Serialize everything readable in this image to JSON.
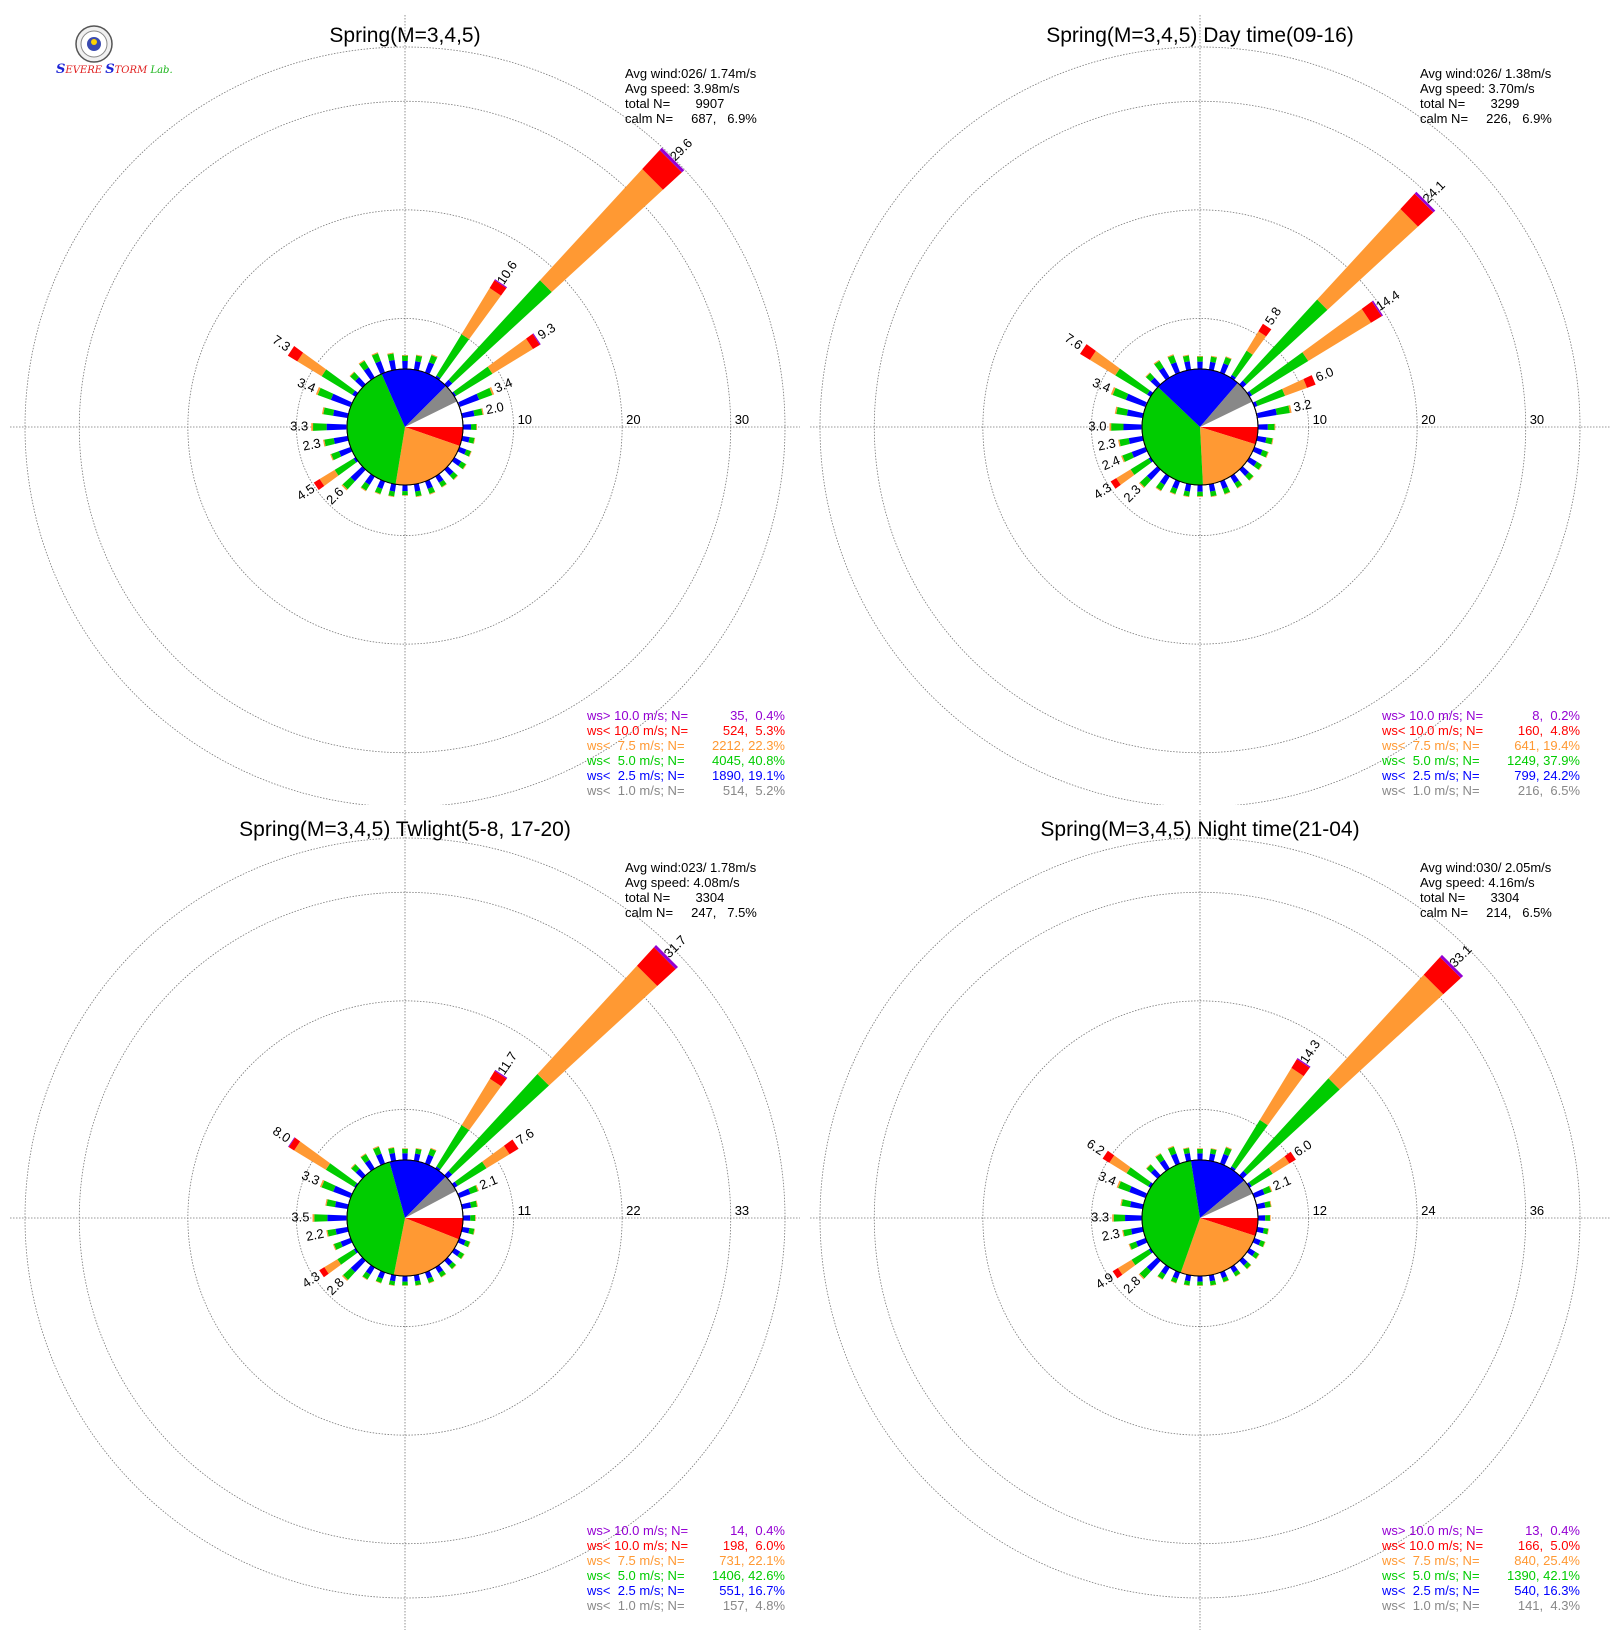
{
  "legend_labels": {
    "gt10": "ws> 10.0 m/s; N=",
    "lt10": "ws< 10.0 m/s; N=",
    "lt75": "ws<  7.5 m/s; N=",
    "lt5": "ws<  5.0 m/s; N=",
    "lt25": "ws<  2.5 m/s; N=",
    "lt1": "ws<  1.0 m/s; N="
  },
  "colors": {
    "gt10": "#9400d3",
    "lt10": "#ff0000",
    "lt75": "#ff9933",
    "lt5": "#00cc00",
    "lt25": "#0000ff",
    "lt1": "#888888",
    "grid": "#777777",
    "text": "#000000"
  },
  "logo": {
    "emblem": "university-seal-icon",
    "text": "Severe Storm Lab."
  },
  "chart_data": [
    {
      "type": "windrose",
      "title": "Spring(M=3,4,5)",
      "stats": [
        "Avg wind:026/ 1.74m/s",
        "Avg speed: 3.98m/s",
        "total N=       9907",
        "calm N=     687,   6.9%"
      ],
      "rings": [
        "10",
        "20",
        "30"
      ],
      "rmax": 35,
      "legend": [
        {
          "key": "gt10",
          "value": "35,  0.4%"
        },
        {
          "key": "lt10",
          "value": "524,  5.3%"
        },
        {
          "key": "lt75",
          "value": "2212, 22.3%"
        },
        {
          "key": "lt5",
          "value": "4045, 40.8%"
        },
        {
          "key": "lt25",
          "value": "1890, 19.1%"
        },
        {
          "key": "lt1",
          "value": "514,  5.2%"
        }
      ],
      "class_distribution": [
        0.4,
        5.3,
        22.3,
        40.8,
        19.1,
        5.2
      ],
      "petals": [
        {
          "dir": 45,
          "total": 29.6,
          "label": "29.6"
        },
        {
          "dir": 33.75,
          "total": 10.6,
          "label": "10.6"
        },
        {
          "dir": 56.25,
          "total": 9.3,
          "label": "9.3"
        },
        {
          "dir": 67.5,
          "total": 3.4,
          "label": "3.4"
        },
        {
          "dir": 78.75,
          "total": 2.0,
          "label": "2.0"
        },
        {
          "dir": 22.5,
          "total": 1.8
        },
        {
          "dir": 11.25,
          "total": 1.4
        },
        {
          "dir": 0,
          "total": 1.3
        },
        {
          "dir": 348.75,
          "total": 1.6
        },
        {
          "dir": 337.5,
          "total": 2.0
        },
        {
          "dir": 326.25,
          "total": 1.9
        },
        {
          "dir": 303.75,
          "total": 7.3,
          "label": "7.3"
        },
        {
          "dir": 292.5,
          "total": 3.4,
          "label": "3.4"
        },
        {
          "dir": 281.25,
          "total": 2.4
        },
        {
          "dir": 270,
          "total": 3.3,
          "label": "3.3"
        },
        {
          "dir": 258.75,
          "total": 2.3,
          "label": "2.3"
        },
        {
          "dir": 247.5,
          "total": 2.0
        },
        {
          "dir": 236.25,
          "total": 4.5,
          "label": "4.5"
        },
        {
          "dir": 225,
          "total": 2.6,
          "label": "2.6"
        },
        {
          "dir": 213.75,
          "total": 1.6
        },
        {
          "dir": 202.5,
          "total": 1.3
        },
        {
          "dir": 191.25,
          "total": 1.2
        },
        {
          "dir": 180,
          "total": 1.0
        },
        {
          "dir": 168.75,
          "total": 1.2
        },
        {
          "dir": 157.5,
          "total": 1.3
        },
        {
          "dir": 146.25,
          "total": 1.2
        },
        {
          "dir": 135,
          "total": 1.3
        },
        {
          "dir": 123.75,
          "total": 1.3
        },
        {
          "dir": 112.5,
          "total": 1.2
        },
        {
          "dir": 101.25,
          "total": 1.2
        },
        {
          "dir": 90,
          "total": 1.3
        },
        {
          "dir": 315,
          "total": 1.6
        }
      ]
    },
    {
      "type": "windrose",
      "title": "Spring(M=3,4,5) Day time(09-16)",
      "stats": [
        "Avg wind:026/ 1.38m/s",
        "Avg speed: 3.70m/s",
        "total N=       3299",
        "calm N=     226,   6.9%"
      ],
      "rings": [
        "10",
        "20",
        "30"
      ],
      "rmax": 35,
      "legend": [
        {
          "key": "gt10",
          "value": "8,  0.2%"
        },
        {
          "key": "lt10",
          "value": "160,  4.8%"
        },
        {
          "key": "lt75",
          "value": "641, 19.4%"
        },
        {
          "key": "lt5",
          "value": "1249, 37.9%"
        },
        {
          "key": "lt25",
          "value": "799, 24.2%"
        },
        {
          "key": "lt1",
          "value": "216,  6.5%"
        }
      ],
      "class_distribution": [
        0.2,
        4.8,
        19.4,
        37.9,
        24.2,
        6.5
      ],
      "petals": [
        {
          "dir": 45,
          "total": 24.1,
          "label": "24.1"
        },
        {
          "dir": 56.25,
          "total": 14.4,
          "label": "14.4"
        },
        {
          "dir": 33.75,
          "total": 5.8,
          "label": "5.8"
        },
        {
          "dir": 67.5,
          "total": 6.0,
          "label": "6.0"
        },
        {
          "dir": 78.75,
          "total": 3.2,
          "label": "3.2"
        },
        {
          "dir": 22.5,
          "total": 1.6
        },
        {
          "dir": 11.25,
          "total": 1.3
        },
        {
          "dir": 0,
          "total": 1.2
        },
        {
          "dir": 348.75,
          "total": 1.4
        },
        {
          "dir": 337.5,
          "total": 1.8
        },
        {
          "dir": 326.25,
          "total": 1.9
        },
        {
          "dir": 315,
          "total": 1.5
        },
        {
          "dir": 303.75,
          "total": 7.6,
          "label": "7.6"
        },
        {
          "dir": 292.5,
          "total": 3.4,
          "label": "3.4"
        },
        {
          "dir": 281.25,
          "total": 2.6
        },
        {
          "dir": 270,
          "total": 3.0,
          "label": "3.0"
        },
        {
          "dir": 258.75,
          "total": 2.3,
          "label": "2.3"
        },
        {
          "dir": 247.5,
          "total": 2.4,
          "label": "2.4"
        },
        {
          "dir": 236.25,
          "total": 4.3,
          "label": "4.3"
        },
        {
          "dir": 225,
          "total": 2.3,
          "label": "2.3"
        },
        {
          "dir": 213.75,
          "total": 1.6
        },
        {
          "dir": 202.5,
          "total": 1.3
        },
        {
          "dir": 191.25,
          "total": 1.2
        },
        {
          "dir": 180,
          "total": 1.1
        },
        {
          "dir": 168.75,
          "total": 1.2
        },
        {
          "dir": 157.5,
          "total": 1.3
        },
        {
          "dir": 146.25,
          "total": 1.3
        },
        {
          "dir": 135,
          "total": 1.4
        },
        {
          "dir": 123.75,
          "total": 1.4
        },
        {
          "dir": 112.5,
          "total": 1.4
        },
        {
          "dir": 101.25,
          "total": 1.5
        },
        {
          "dir": 90,
          "total": 1.6
        }
      ]
    },
    {
      "type": "windrose",
      "title": "Spring(M=3,4,5) Twlight(5-8, 17-20)",
      "stats": [
        "Avg wind:023/ 1.78m/s",
        "Avg speed: 4.08m/s",
        "total N=       3304",
        "calm N=     247,   7.5%"
      ],
      "rings": [
        "11",
        "22",
        "33"
      ],
      "rmax": 38.5,
      "legend": [
        {
          "key": "gt10",
          "value": "14,  0.4%"
        },
        {
          "key": "lt10",
          "value": "198,  6.0%"
        },
        {
          "key": "lt75",
          "value": "731, 22.1%"
        },
        {
          "key": "lt5",
          "value": "1406, 42.6%"
        },
        {
          "key": "lt25",
          "value": "551, 16.7%"
        },
        {
          "key": "lt1",
          "value": "157,  4.8%"
        }
      ],
      "class_distribution": [
        0.4,
        6.0,
        22.1,
        42.6,
        16.7,
        4.8
      ],
      "petals": [
        {
          "dir": 45,
          "total": 31.7,
          "label": "31.7"
        },
        {
          "dir": 33.75,
          "total": 11.7,
          "label": "11.7"
        },
        {
          "dir": 56.25,
          "total": 7.6,
          "label": "7.6"
        },
        {
          "dir": 67.5,
          "total": 2.1,
          "label": "2.1"
        },
        {
          "dir": 78.75,
          "total": 1.6
        },
        {
          "dir": 22.5,
          "total": 1.7
        },
        {
          "dir": 11.25,
          "total": 1.3
        },
        {
          "dir": 0,
          "total": 1.2
        },
        {
          "dir": 348.75,
          "total": 1.4
        },
        {
          "dir": 337.5,
          "total": 1.9
        },
        {
          "dir": 326.25,
          "total": 1.8
        },
        {
          "dir": 315,
          "total": 1.6
        },
        {
          "dir": 303.75,
          "total": 8.0,
          "label": "8.0"
        },
        {
          "dir": 292.5,
          "total": 3.3,
          "label": "3.3"
        },
        {
          "dir": 281.25,
          "total": 2.3
        },
        {
          "dir": 270,
          "total": 3.5,
          "label": "3.5"
        },
        {
          "dir": 258.75,
          "total": 2.2,
          "label": "2.2"
        },
        {
          "dir": 247.5,
          "total": 1.9
        },
        {
          "dir": 236.25,
          "total": 4.3,
          "label": "4.3"
        },
        {
          "dir": 225,
          "total": 2.8,
          "label": "2.8"
        },
        {
          "dir": 213.75,
          "total": 1.5
        },
        {
          "dir": 202.5,
          "total": 1.2
        },
        {
          "dir": 191.25,
          "total": 1.1
        },
        {
          "dir": 180,
          "total": 1.0
        },
        {
          "dir": 168.75,
          "total": 1.1
        },
        {
          "dir": 157.5,
          "total": 1.2
        },
        {
          "dir": 146.25,
          "total": 1.2
        },
        {
          "dir": 135,
          "total": 1.2
        },
        {
          "dir": 123.75,
          "total": 1.2
        },
        {
          "dir": 112.5,
          "total": 1.2
        },
        {
          "dir": 101.25,
          "total": 1.3
        },
        {
          "dir": 90,
          "total": 1.3
        }
      ]
    },
    {
      "type": "windrose",
      "title": "Spring(M=3,4,5) Night time(21-04)",
      "stats": [
        "Avg wind:030/ 2.05m/s",
        "Avg speed: 4.16m/s",
        "total N=       3304",
        "calm N=     214,   6.5%"
      ],
      "rings": [
        "12",
        "24",
        "36"
      ],
      "rmax": 42,
      "legend": [
        {
          "key": "gt10",
          "value": "13,  0.4%"
        },
        {
          "key": "lt10",
          "value": "166,  5.0%"
        },
        {
          "key": "lt75",
          "value": "840, 25.4%"
        },
        {
          "key": "lt5",
          "value": "1390, 42.1%"
        },
        {
          "key": "lt25",
          "value": "540, 16.3%"
        },
        {
          "key": "lt1",
          "value": "141,  4.3%"
        }
      ],
      "class_distribution": [
        0.4,
        5.0,
        25.4,
        42.1,
        16.3,
        4.3
      ],
      "petals": [
        {
          "dir": 45,
          "total": 33.1,
          "label": "33.1"
        },
        {
          "dir": 33.75,
          "total": 14.3,
          "label": "14.3"
        },
        {
          "dir": 56.25,
          "total": 6.0,
          "label": "6.0"
        },
        {
          "dir": 67.5,
          "total": 2.1,
          "label": "2.1"
        },
        {
          "dir": 78.75,
          "total": 1.6
        },
        {
          "dir": 22.5,
          "total": 2.0
        },
        {
          "dir": 11.25,
          "total": 1.4
        },
        {
          "dir": 0,
          "total": 1.3
        },
        {
          "dir": 348.75,
          "total": 1.5
        },
        {
          "dir": 337.5,
          "total": 2.1
        },
        {
          "dir": 326.25,
          "total": 2.0
        },
        {
          "dir": 315,
          "total": 1.7
        },
        {
          "dir": 303.75,
          "total": 6.2,
          "label": "6.2"
        },
        {
          "dir": 292.5,
          "total": 3.4,
          "label": "3.4"
        },
        {
          "dir": 281.25,
          "total": 2.5
        },
        {
          "dir": 270,
          "total": 3.3,
          "label": "3.3"
        },
        {
          "dir": 258.75,
          "total": 2.3,
          "label": "2.3"
        },
        {
          "dir": 247.5,
          "total": 2.0
        },
        {
          "dir": 236.25,
          "total": 4.9,
          "label": "4.9"
        },
        {
          "dir": 225,
          "total": 2.8,
          "label": "2.8"
        },
        {
          "dir": 213.75,
          "total": 1.6
        },
        {
          "dir": 202.5,
          "total": 1.3
        },
        {
          "dir": 191.25,
          "total": 1.2
        },
        {
          "dir": 180,
          "total": 1.1
        },
        {
          "dir": 168.75,
          "total": 1.2
        },
        {
          "dir": 157.5,
          "total": 1.2
        },
        {
          "dir": 146.25,
          "total": 1.2
        },
        {
          "dir": 135,
          "total": 1.3
        },
        {
          "dir": 123.75,
          "total": 1.3
        },
        {
          "dir": 112.5,
          "total": 1.3
        },
        {
          "dir": 101.25,
          "total": 1.3
        },
        {
          "dir": 90,
          "total": 1.4
        }
      ]
    }
  ]
}
